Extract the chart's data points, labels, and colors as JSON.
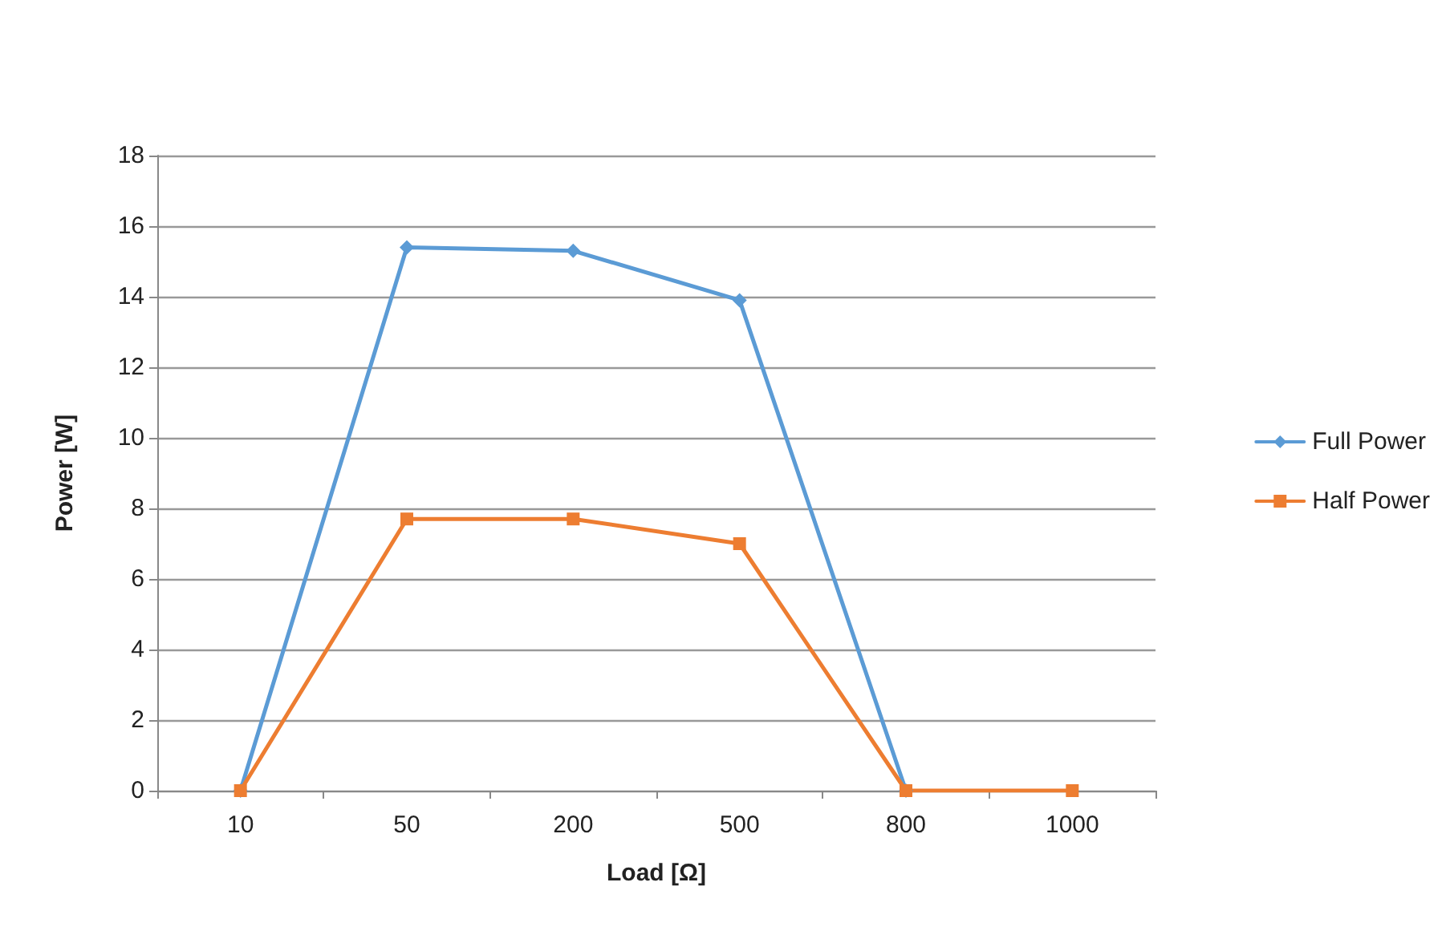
{
  "chart_data": {
    "type": "line",
    "xlabel": "Load [Ω]",
    "ylabel": "Power [W]",
    "categories": [
      "10",
      "50",
      "200",
      "500",
      "800",
      "1000"
    ],
    "series": [
      {
        "name": "Full Power",
        "color": "#5b9bd5",
        "marker": "diamond",
        "values": [
          0,
          15.4,
          15.3,
          13.9,
          0,
          null
        ]
      },
      {
        "name": "Half Power",
        "color": "#ed7d31",
        "marker": "square",
        "values": [
          0,
          7.7,
          7.7,
          7.0,
          0,
          0
        ]
      }
    ],
    "ylim": [
      0,
      18
    ],
    "yticks": [
      0,
      2,
      4,
      6,
      8,
      10,
      12,
      14,
      16,
      18
    ],
    "grid": "y",
    "legend": "right"
  }
}
